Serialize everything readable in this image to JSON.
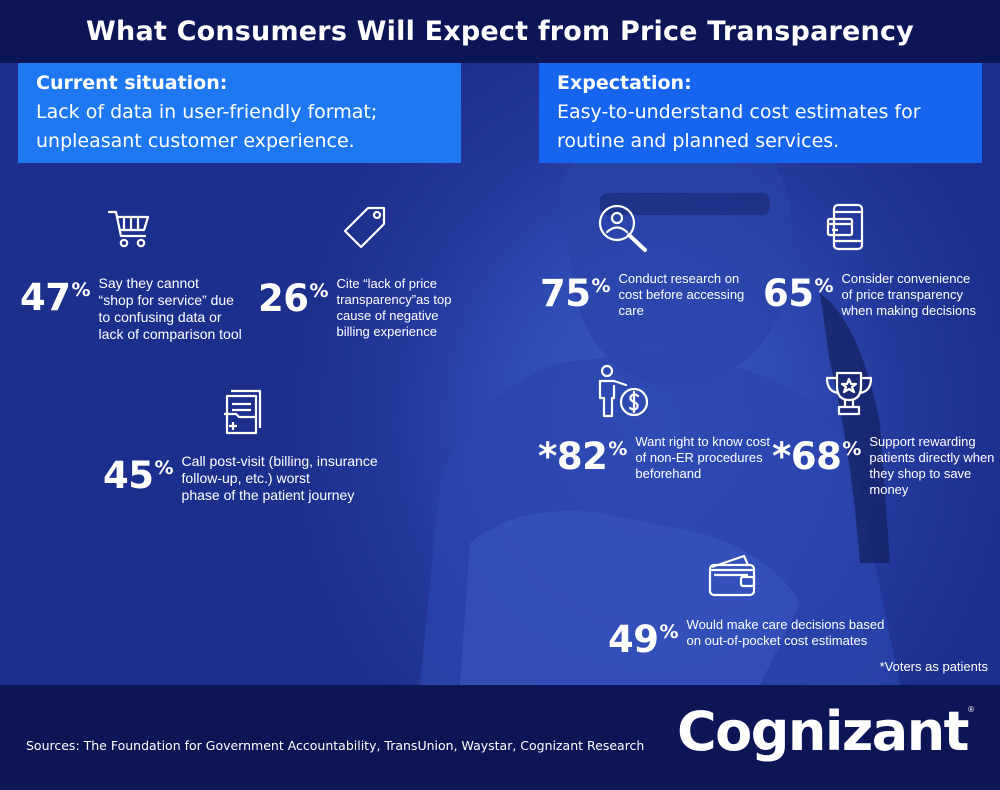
{
  "title": "What Consumers Will Expect from Price Transparency",
  "current": {
    "heading": "Current situation:",
    "line1": "Lack of data in user-friendly format;",
    "line2": "unpleasant customer experience."
  },
  "expectation": {
    "heading": "Expectation:",
    "line1": "Easy-to-understand cost estimates for",
    "line2": "routine and planned services."
  },
  "stats": {
    "s47": {
      "value": "47",
      "unit": "%",
      "lines": [
        "Say they cannot",
        "“shop for service” due",
        "to confusing data or",
        "lack of comparison tool"
      ]
    },
    "s26": {
      "value": "26",
      "unit": "%",
      "lines": [
        "Cite “lack of price",
        "transparency”as top",
        "cause of negative",
        "billing experience"
      ]
    },
    "s45": {
      "value": "45",
      "unit": "%",
      "lines": [
        "Call post-visit (billing, insurance",
        "follow-up, etc.) worst",
        "phase of the patient journey"
      ]
    },
    "s75": {
      "value": "75",
      "unit": "%",
      "lines": [
        "Conduct research on",
        "cost before accessing",
        "care"
      ]
    },
    "s65": {
      "value": "65",
      "unit": "%",
      "lines": [
        "Consider convenience",
        "of price transparency",
        "when making decisions"
      ]
    },
    "s82": {
      "value": "*82",
      "unit": "%",
      "lines": [
        "Want right to know cost",
        "of non-ER procedures",
        "beforehand"
      ]
    },
    "s68": {
      "value": "*68",
      "unit": "%",
      "lines": [
        "Support rewarding",
        "patients directly when",
        "they shop to save money"
      ]
    },
    "s49": {
      "value": "49",
      "unit": "%",
      "lines": [
        "Would make care decisions based",
        "on out-of-pocket cost estimates"
      ]
    }
  },
  "icons": {
    "s47": "shopping-cart-icon",
    "s26": "price-tag-icon",
    "s45": "medical-folder-icon",
    "s75": "user-search-icon",
    "s65": "mobile-payment-icon",
    "s82": "person-dollar-icon",
    "s68": "trophy-icon",
    "s49": "wallet-icon"
  },
  "note": "*Voters as patients",
  "footer": {
    "sources": "Sources: The Foundation for Government Accountability, TransUnion, Waystar, Cognizant Research",
    "logo": "Cognizant"
  },
  "colors": {
    "navy": "#0c1556",
    "panel_left": "#1e78f2",
    "panel_right": "#1565ef",
    "photo": "#2f4bb4"
  }
}
